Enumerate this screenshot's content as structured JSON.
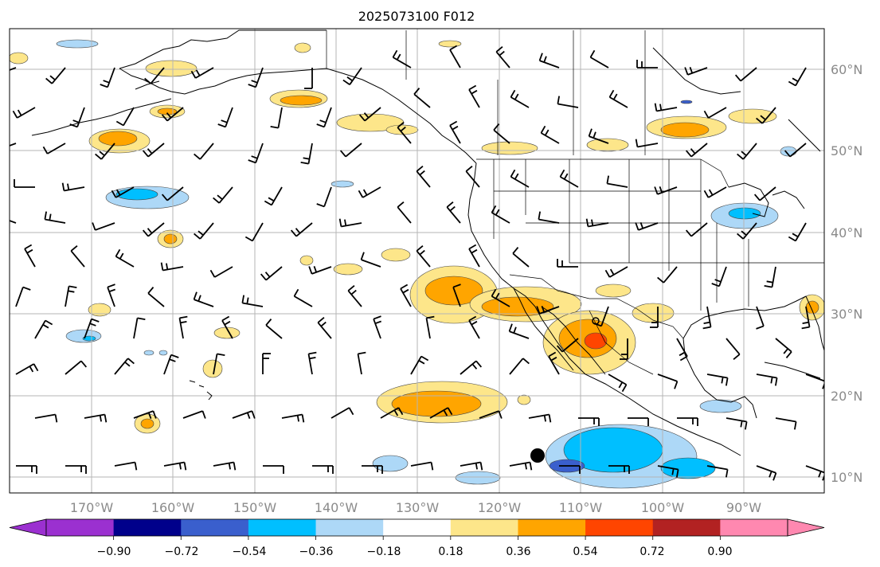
{
  "title": "2025073100 F012",
  "lat_labels": [
    "60°N",
    "50°N",
    "40°N",
    "30°N",
    "20°N",
    "10°N"
  ],
  "lon_labels": [
    "170°W",
    "160°W",
    "150°W",
    "140°W",
    "130°W",
    "120°W",
    "110°W",
    "100°W",
    "90°W"
  ],
  "colorbar": {
    "tick_labels": [
      "−0.90",
      "−0.72",
      "−0.54",
      "−0.36",
      "−0.18",
      "0.18",
      "0.36",
      "0.54",
      "0.72",
      "0.90"
    ],
    "colors": [
      "#9b30d0",
      "#00008b",
      "#3a5fcd",
      "#00bfff",
      "#add8f7",
      "#ffffff",
      "#fde68a",
      "#ffa500",
      "#ff4500",
      "#b22222",
      "#ff88b0"
    ]
  },
  "storm_marker": {
    "label": "tropical cyclone position marker"
  }
}
